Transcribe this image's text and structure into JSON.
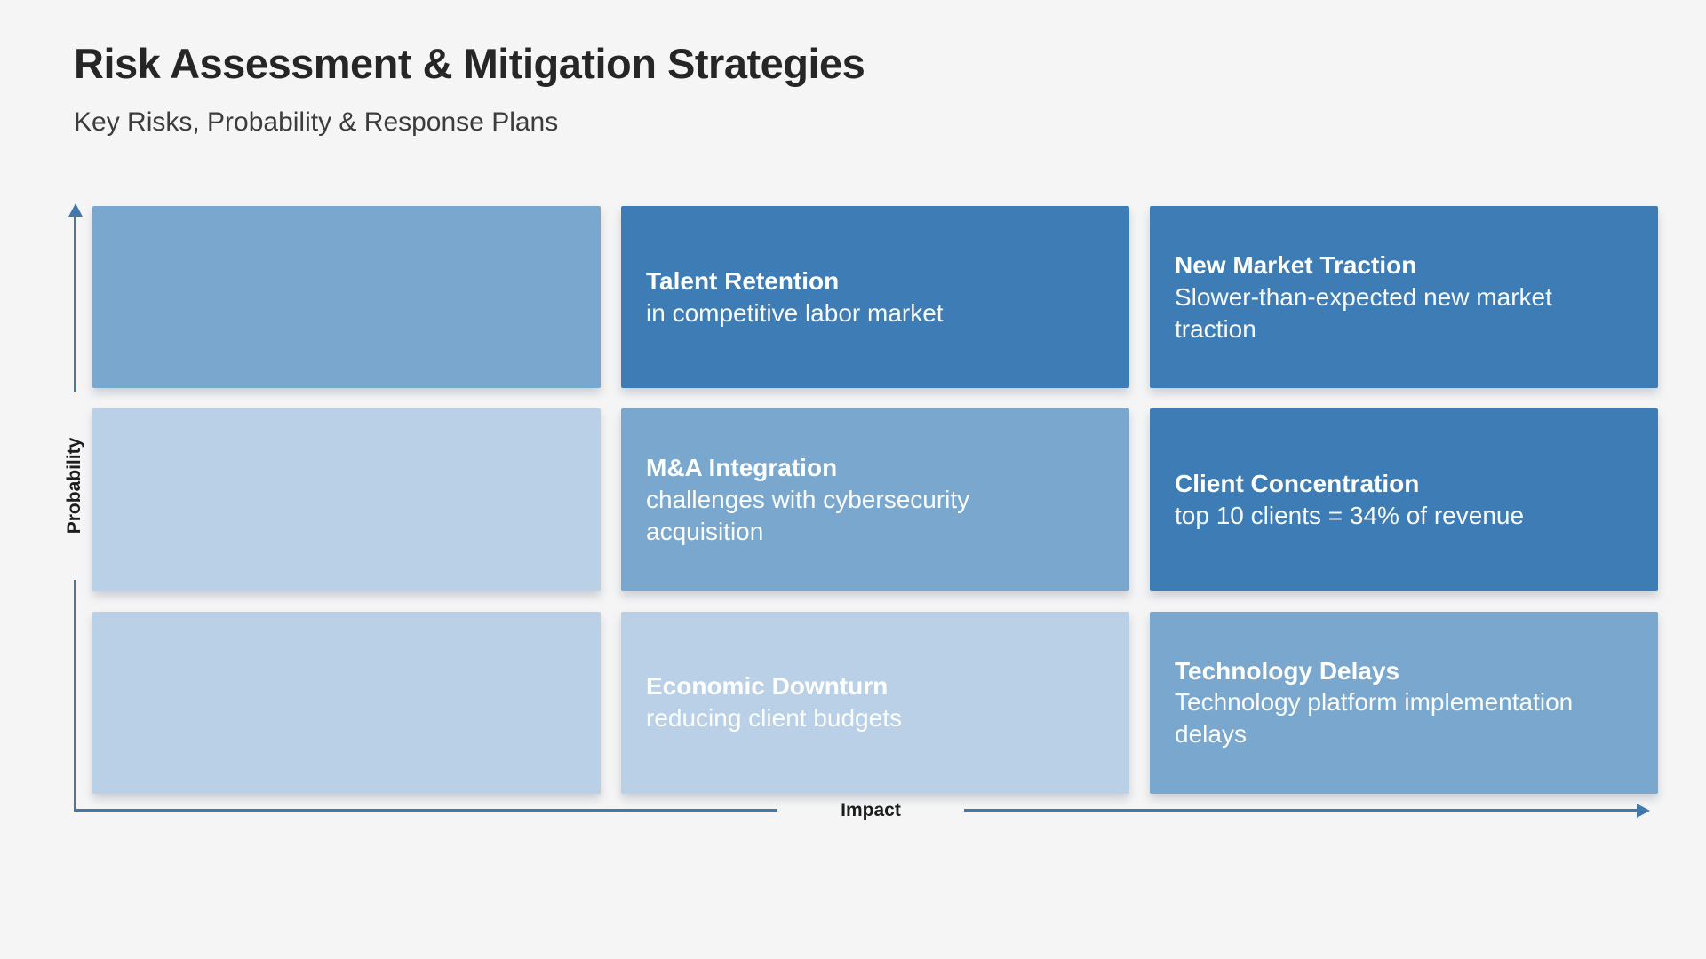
{
  "page": {
    "title": "Risk Assessment & Mitigation Strategies",
    "subtitle": "Key Risks, Probability & Response Plans",
    "background_color": "#f5f5f6"
  },
  "matrix": {
    "type": "risk-matrix-3x3",
    "y_axis_label": "Probability",
    "x_axis_label": "Impact",
    "axis_color": "#4478ad",
    "severity_colors": {
      "high": "#3d7cb5",
      "medium": "#7aa7ce",
      "low": "#b9d0e7"
    },
    "cells": [
      {
        "row": 1,
        "col": 1,
        "level": "medium",
        "title": "",
        "description": ""
      },
      {
        "row": 1,
        "col": 2,
        "level": "high",
        "title": "Talent Retention",
        "description": "in competitive labor market"
      },
      {
        "row": 1,
        "col": 3,
        "level": "high",
        "title": "New Market Traction",
        "description": "Slower-than-expected new market traction"
      },
      {
        "row": 2,
        "col": 1,
        "level": "low",
        "title": "",
        "description": ""
      },
      {
        "row": 2,
        "col": 2,
        "level": "medium",
        "title": "M&A Integration",
        "description": "challenges with cybersecurity acquisition"
      },
      {
        "row": 2,
        "col": 3,
        "level": "high",
        "title": "Client Concentration",
        "description": "top 10 clients = 34% of revenue"
      },
      {
        "row": 3,
        "col": 1,
        "level": "low",
        "title": "",
        "description": ""
      },
      {
        "row": 3,
        "col": 2,
        "level": "low",
        "title": "Economic Downturn",
        "description": "reducing client budgets"
      },
      {
        "row": 3,
        "col": 3,
        "level": "medium",
        "title": "Technology Delays",
        "description": "Technology platform implementation delays"
      }
    ]
  }
}
